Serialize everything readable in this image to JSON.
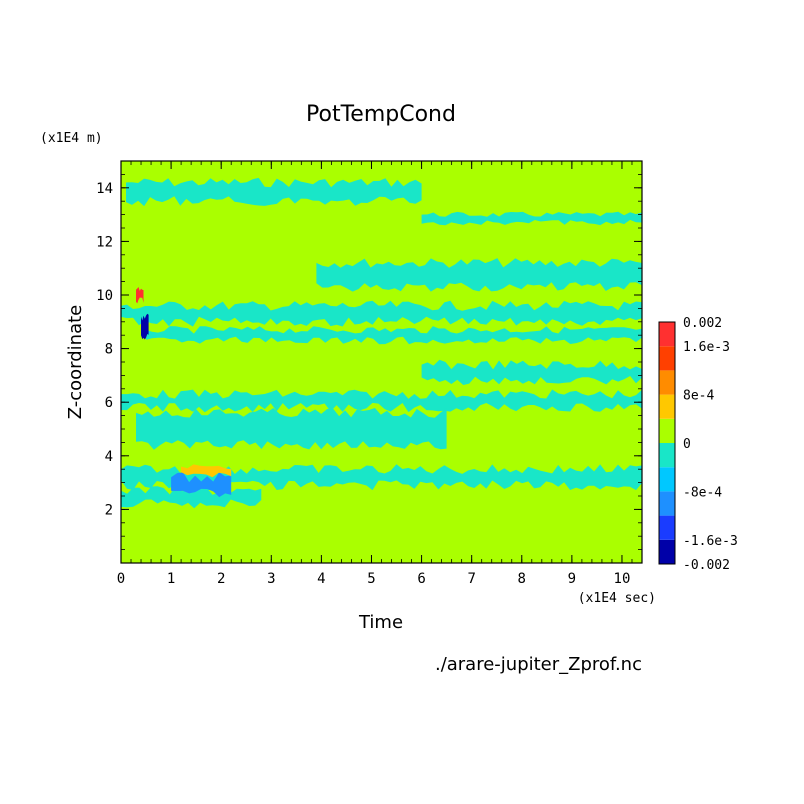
{
  "chart_data": {
    "type": "heatmap",
    "title": "PotTempCond",
    "xlabel": "Time",
    "ylabel": "Z-coordinate",
    "x_unit": "(x1E4 sec)",
    "y_unit": "(x1E4 m)",
    "source_file": "./arare-jupiter_Zprof.nc",
    "xlim": [
      0,
      10.4
    ],
    "ylim": [
      0,
      15
    ],
    "x_ticks": [
      "0",
      "1",
      "2",
      "3",
      "4",
      "5",
      "6",
      "7",
      "8",
      "9",
      "10"
    ],
    "y_ticks": [
      "2",
      "4",
      "6",
      "8",
      "10",
      "12",
      "14"
    ],
    "background_level": "0",
    "colorbar": {
      "levels": [
        {
          "color": "#0000a8",
          "range": [
            -0.002,
            -0.0016
          ]
        },
        {
          "color": "#1a3cff",
          "range": [
            -0.0016,
            -0.0012
          ]
        },
        {
          "color": "#1e90ff",
          "range": [
            -0.0012,
            -0.0008
          ]
        },
        {
          "color": "#00c8ff",
          "range": [
            -0.0008,
            -0.0004
          ]
        },
        {
          "color": "#19e6c8",
          "range": [
            -0.0004,
            0
          ]
        },
        {
          "color": "#aaff00",
          "range": [
            0,
            0.0004
          ]
        },
        {
          "color": "#ffc800",
          "range": [
            0.0004,
            0.0008
          ]
        },
        {
          "color": "#ff8c00",
          "range": [
            0.0008,
            0.0012
          ]
        },
        {
          "color": "#ff4000",
          "range": [
            0.0012,
            0.0016
          ]
        },
        {
          "color": "#ff3030",
          "range": [
            0.0016,
            0.002
          ]
        }
      ],
      "labels": [
        "0.002",
        "1.6e-3",
        "8e-4",
        "0",
        "-8e-4",
        "-1.6e-3",
        "-0.002"
      ]
    },
    "regions": [
      {
        "level": "neg_small",
        "x": [
          0.1,
          6.0
        ],
        "y": [
          13.5,
          14.2
        ]
      },
      {
        "level": "neg_small",
        "x": [
          6.0,
          10.4
        ],
        "y": [
          12.7,
          13.0
        ]
      },
      {
        "level": "neg_small",
        "x": [
          3.9,
          10.4
        ],
        "y": [
          10.3,
          11.2
        ]
      },
      {
        "level": "neg_small",
        "x": [
          0.0,
          10.4
        ],
        "y": [
          9.0,
          9.6
        ]
      },
      {
        "level": "neg_small",
        "x": [
          0.5,
          10.4
        ],
        "y": [
          8.3,
          8.7
        ]
      },
      {
        "level": "neg_small",
        "x": [
          6.0,
          10.4
        ],
        "y": [
          6.8,
          7.4
        ]
      },
      {
        "level": "neg_small",
        "x": [
          0.0,
          10.4
        ],
        "y": [
          5.8,
          6.3
        ]
      },
      {
        "level": "neg_small",
        "x": [
          0.3,
          6.5
        ],
        "y": [
          4.4,
          5.6
        ]
      },
      {
        "level": "neg_small",
        "x": [
          0.0,
          10.4
        ],
        "y": [
          2.9,
          3.5
        ]
      },
      {
        "level": "neg_small",
        "x": [
          0.0,
          2.8
        ],
        "y": [
          2.2,
          2.7
        ]
      },
      {
        "level": "neg_mid",
        "x": [
          1.0,
          2.2
        ],
        "y": [
          2.6,
          3.2
        ]
      },
      {
        "level": "neg_large",
        "x": [
          0.4,
          0.55
        ],
        "y": [
          8.4,
          9.2
        ]
      },
      {
        "level": "pos_small",
        "x": [
          1.2,
          2.2
        ],
        "y": [
          3.3,
          3.6
        ]
      },
      {
        "level": "pos_large",
        "x": [
          0.3,
          0.45
        ],
        "y": [
          9.8,
          10.2
        ]
      }
    ]
  }
}
